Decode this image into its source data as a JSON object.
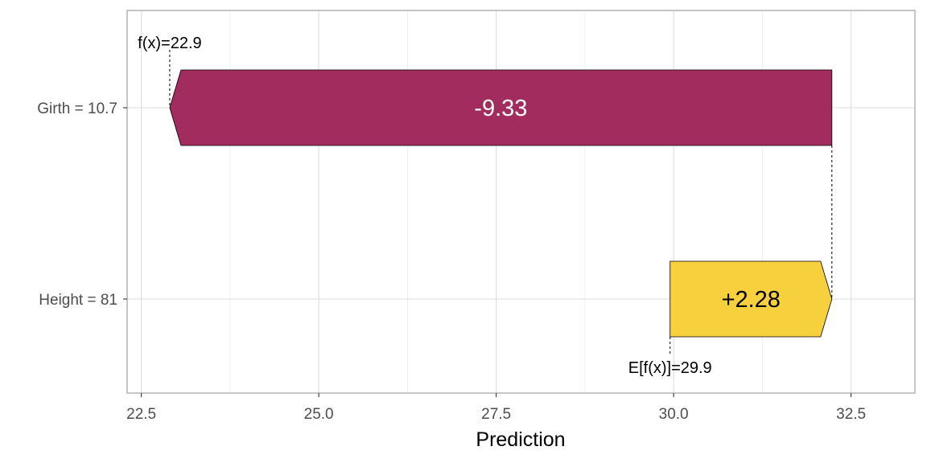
{
  "chart_data": {
    "type": "waterfall",
    "xlabel": "Prediction",
    "xlim": [
      22.3,
      33.4
    ],
    "x_ticks": [
      22.5,
      25.0,
      27.5,
      30.0,
      32.5
    ],
    "x_tick_labels": [
      "22.5",
      "25.0",
      "27.5",
      "30.0",
      "32.5"
    ],
    "grid": true,
    "features": [
      {
        "label": "Girth = 10.7",
        "start": 32.23,
        "end": 22.9,
        "value": -9.33,
        "value_label": "-9.33",
        "color": "#a32c5f",
        "text_color": "#ffffff"
      },
      {
        "label": "Height = 81",
        "start": 29.95,
        "end": 32.23,
        "value": 2.28,
        "value_label": "+2.28",
        "color": "#f6d03d",
        "text_color": "#000000"
      }
    ],
    "fx": {
      "value": 22.9,
      "label": "f(x)=22.9"
    },
    "efx": {
      "value": 29.95,
      "label": "E[f(x)]=29.9"
    }
  }
}
